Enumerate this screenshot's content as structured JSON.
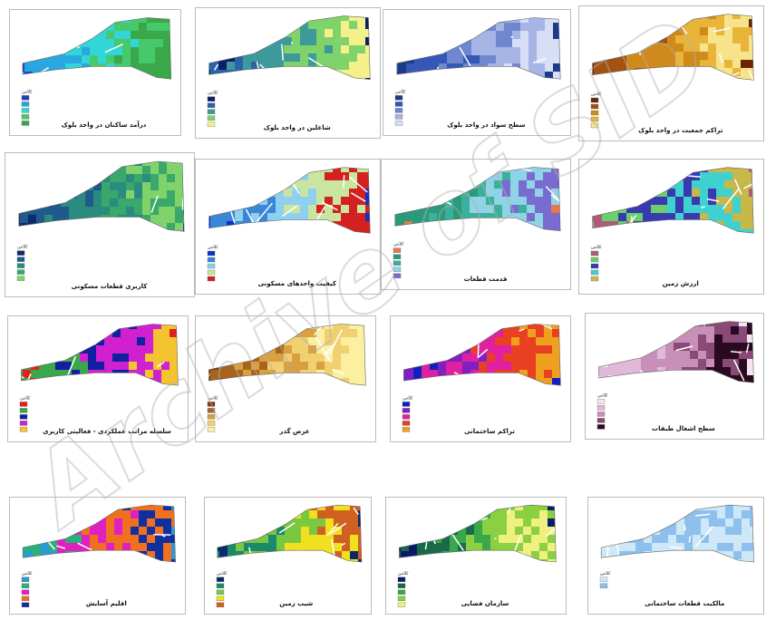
{
  "legend_title": "کلاس",
  "watermark": "Archive of SID",
  "maps": [
    {
      "caption": "درآمد ساکنان در واحد بلوک",
      "colors": [
        "#1f3fbf",
        "#29a7e0",
        "#33d6d6",
        "#46c96b",
        "#3aa84a"
      ]
    },
    {
      "caption": "شاغلین در واحد بلوک",
      "colors": [
        "#0d1f6b",
        "#2a63a8",
        "#3c9a9a",
        "#7fd36a",
        "#f4f08a"
      ]
    },
    {
      "caption": "سطح سواد در واحد بلوک",
      "colors": [
        "#1c3a8c",
        "#3557b5",
        "#6f86d0",
        "#a6b4e6",
        "#d7def5"
      ]
    },
    {
      "caption": "تراکم جمعیت در واحد بلوک",
      "colors": [
        "#6b2408",
        "#a3520f",
        "#d08a1c",
        "#e9b43a",
        "#f7e48a"
      ]
    },
    {
      "caption": "کاربری قطعات مسکونی",
      "colors": [
        "#0f2a6b",
        "#1f5a8c",
        "#2a8c7f",
        "#3aa86a",
        "#7fd36a"
      ]
    },
    {
      "caption": "کیفیت واحدهای مسکونی",
      "colors": [
        "#1030c8",
        "#3a86d8",
        "#8fd0f0",
        "#c9e6a0",
        "#d42020"
      ]
    },
    {
      "caption": "قدمت قطعات",
      "colors": [
        "#e8784a",
        "#2a9a7a",
        "#3bb09a",
        "#8fd3e6",
        "#7a6bd0"
      ]
    },
    {
      "caption": "ارزش زمین",
      "colors": [
        "#b05a7a",
        "#6ad06a",
        "#3a3ab0",
        "#3fd0d0",
        "#c8b84a"
      ]
    },
    {
      "caption": "سلسله مراتب عملکردی - فعالیتی کاربری",
      "colors": [
        "#e02020",
        "#3aa84a",
        "#1020a0",
        "#d020d0",
        "#f4c430"
      ]
    },
    {
      "caption": "عرض گذر",
      "colors": [
        "#7a3a0a",
        "#a8641a",
        "#d8a040",
        "#f0d070",
        "#faf0a0"
      ]
    },
    {
      "caption": "تراکم ساختمانی",
      "colors": [
        "#1020c0",
        "#8020c0",
        "#e020a0",
        "#e84020",
        "#f0a020"
      ]
    },
    {
      "caption": "سطح اشغال طبقات",
      "colors": [
        "#f4e4f0",
        "#e0b8d8",
        "#c890b8",
        "#8a4a78",
        "#2a0a20"
      ]
    },
    {
      "caption": "اقلیم آسایش",
      "colors": [
        "#2a9ad0",
        "#2ab07a",
        "#e020c0",
        "#f07020",
        "#1030a0"
      ]
    },
    {
      "caption": "شیب زمین",
      "colors": [
        "#0a2a6b",
        "#1a8a6a",
        "#7ac840",
        "#f0e020",
        "#d06020"
      ]
    },
    {
      "caption": "سازمان فضایی",
      "colors": [
        "#0a1a6b",
        "#1a6a4a",
        "#3aa84a",
        "#8ad040",
        "#f0f080"
      ]
    },
    {
      "caption": "مالکیت قطعات ساختمانی",
      "colors": [
        "#cfe8f7",
        "#8ec0ee"
      ]
    }
  ]
}
